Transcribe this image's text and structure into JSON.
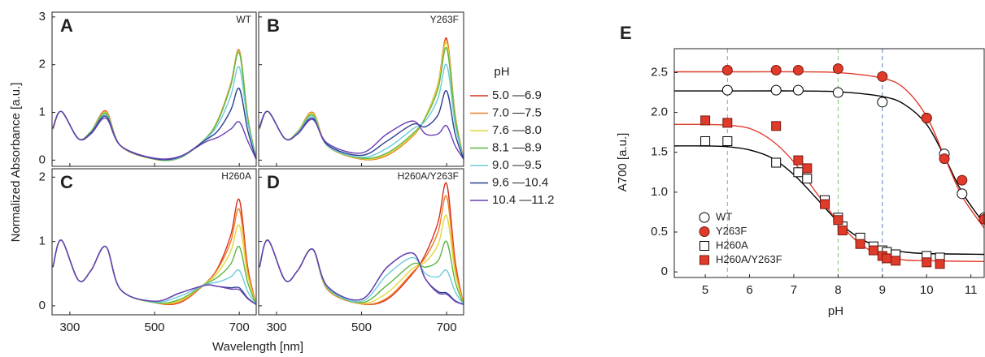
{
  "chart_data": [
    {
      "type": "line",
      "label": "A",
      "title": "WT",
      "y_label": "Normalized Absorbance [a.u.]",
      "legend_title": "pH",
      "x": [
        260,
        280,
        320,
        350,
        385,
        420,
        500,
        560,
        620,
        650,
        680,
        700,
        720,
        740
      ],
      "xlim": [
        258,
        740
      ],
      "xticks": [
        300,
        500,
        700
      ],
      "ylim": [
        -0.13,
        3.1
      ],
      "yticks": [
        0,
        1,
        2,
        3
      ],
      "series": [
        {
          "name": "5.0 —6.9",
          "color": "#d7301f",
          "values": [
            0.65,
            1.02,
            0.45,
            0.6,
            1.03,
            0.3,
            0.02,
            0.05,
            0.45,
            0.85,
            1.6,
            2.3,
            0.9,
            0.02
          ]
        },
        {
          "name": "7.0 —7.5",
          "color": "#f07f24",
          "values": [
            0.65,
            1.02,
            0.45,
            0.6,
            1.02,
            0.3,
            0.02,
            0.05,
            0.45,
            0.85,
            1.6,
            2.29,
            0.9,
            0.02
          ]
        },
        {
          "name": "7.6 —8.0",
          "color": "#e0d93a",
          "values": [
            0.66,
            1.02,
            0.45,
            0.6,
            1.0,
            0.3,
            0.02,
            0.05,
            0.45,
            0.84,
            1.58,
            2.27,
            0.89,
            0.02
          ]
        },
        {
          "name": "8.1 —8.9",
          "color": "#5cb544",
          "values": [
            0.66,
            1.02,
            0.45,
            0.6,
            0.98,
            0.3,
            0.02,
            0.05,
            0.45,
            0.83,
            1.56,
            2.25,
            0.88,
            0.02
          ]
        },
        {
          "name": "9.0 —9.5",
          "color": "#6dcbd9",
          "values": [
            0.67,
            1.02,
            0.45,
            0.58,
            0.95,
            0.3,
            0.03,
            0.06,
            0.44,
            0.75,
            1.35,
            1.95,
            0.78,
            0.02
          ]
        },
        {
          "name": "9.6 —10.4",
          "color": "#2b3f8f",
          "values": [
            0.67,
            1.02,
            0.45,
            0.57,
            0.92,
            0.3,
            0.03,
            0.07,
            0.42,
            0.62,
            1.05,
            1.5,
            0.62,
            0.02
          ]
        },
        {
          "name": "10.4 —11.2",
          "color": "#6a3fb4",
          "values": [
            0.68,
            1.02,
            0.45,
            0.55,
            0.88,
            0.3,
            0.04,
            0.08,
            0.38,
            0.48,
            0.65,
            0.8,
            0.4,
            0.02
          ]
        }
      ]
    },
    {
      "type": "line",
      "label": "B",
      "title": "Y263F",
      "x": [
        260,
        280,
        320,
        350,
        385,
        420,
        500,
        560,
        620,
        650,
        680,
        700,
        720,
        740
      ],
      "xlim": [
        258,
        740
      ],
      "xticks": [
        300,
        500,
        700
      ],
      "ylim": [
        -0.13,
        3.1
      ],
      "yticks": [
        0,
        1,
        2,
        3
      ],
      "series": [
        {
          "color": "#d7301f",
          "values": [
            0.65,
            1.02,
            0.45,
            0.6,
            1.0,
            0.3,
            0.02,
            0.1,
            0.5,
            0.9,
            1.6,
            2.55,
            0.95,
            0.02
          ]
        },
        {
          "color": "#f07f24",
          "values": [
            0.65,
            1.02,
            0.45,
            0.6,
            1.0,
            0.3,
            0.02,
            0.1,
            0.5,
            0.9,
            1.6,
            2.52,
            0.95,
            0.02
          ]
        },
        {
          "color": "#e0d93a",
          "values": [
            0.65,
            1.02,
            0.45,
            0.6,
            0.98,
            0.3,
            0.03,
            0.12,
            0.52,
            0.9,
            1.58,
            2.45,
            0.92,
            0.02
          ]
        },
        {
          "color": "#5cb544",
          "values": [
            0.66,
            1.02,
            0.45,
            0.59,
            0.95,
            0.3,
            0.04,
            0.15,
            0.55,
            0.88,
            1.5,
            2.35,
            0.88,
            0.02
          ]
        },
        {
          "color": "#6dcbd9",
          "values": [
            0.67,
            1.02,
            0.45,
            0.58,
            0.92,
            0.3,
            0.06,
            0.25,
            0.65,
            0.82,
            1.3,
            2.0,
            0.75,
            0.02
          ]
        },
        {
          "color": "#2b3f8f",
          "values": [
            0.68,
            1.02,
            0.45,
            0.56,
            0.88,
            0.32,
            0.1,
            0.4,
            0.75,
            0.7,
            0.95,
            1.45,
            0.55,
            0.02
          ]
        },
        {
          "color": "#6a3fb4",
          "values": [
            0.7,
            1.02,
            0.45,
            0.55,
            0.85,
            0.35,
            0.15,
            0.55,
            0.82,
            0.55,
            0.55,
            0.72,
            0.3,
            0.02
          ]
        }
      ]
    },
    {
      "type": "line",
      "label": "C",
      "title": "H260A",
      "x_label": "Wavelength [nm]",
      "x": [
        260,
        280,
        320,
        350,
        385,
        420,
        500,
        560,
        620,
        650,
        680,
        700,
        720,
        740
      ],
      "xlim": [
        258,
        740
      ],
      "xticks": [
        300,
        500,
        700
      ],
      "ylim": [
        -0.14,
        2.13
      ],
      "yticks": [
        0,
        1,
        2
      ],
      "series": [
        {
          "color": "#d7301f",
          "values": [
            0.6,
            1.02,
            0.4,
            0.55,
            0.92,
            0.25,
            0.05,
            0.05,
            0.35,
            0.6,
            1.1,
            1.65,
            0.6,
            0.02
          ]
        },
        {
          "color": "#f07f24",
          "values": [
            0.6,
            1.02,
            0.4,
            0.55,
            0.92,
            0.25,
            0.05,
            0.06,
            0.35,
            0.58,
            1.0,
            1.5,
            0.55,
            0.02
          ]
        },
        {
          "color": "#e0d93a",
          "values": [
            0.6,
            1.02,
            0.4,
            0.55,
            0.92,
            0.25,
            0.05,
            0.08,
            0.35,
            0.52,
            0.85,
            1.25,
            0.47,
            0.02
          ]
        },
        {
          "color": "#5cb544",
          "values": [
            0.6,
            1.02,
            0.4,
            0.55,
            0.92,
            0.25,
            0.05,
            0.1,
            0.34,
            0.45,
            0.65,
            0.92,
            0.36,
            0.02
          ]
        },
        {
          "color": "#6dcbd9",
          "values": [
            0.6,
            1.02,
            0.4,
            0.55,
            0.92,
            0.25,
            0.06,
            0.15,
            0.33,
            0.37,
            0.45,
            0.55,
            0.22,
            0.02
          ]
        },
        {
          "color": "#2b3f8f",
          "values": [
            0.6,
            1.02,
            0.4,
            0.55,
            0.92,
            0.25,
            0.07,
            0.2,
            0.32,
            0.3,
            0.28,
            0.28,
            0.12,
            0.02
          ]
        },
        {
          "color": "#6a3fb4",
          "values": [
            0.6,
            1.02,
            0.4,
            0.55,
            0.92,
            0.25,
            0.07,
            0.2,
            0.32,
            0.3,
            0.26,
            0.25,
            0.11,
            0.02
          ]
        }
      ]
    },
    {
      "type": "line",
      "label": "D",
      "title": "H260A/Y263F",
      "x": [
        260,
        280,
        320,
        350,
        385,
        420,
        500,
        560,
        620,
        650,
        680,
        700,
        720,
        740
      ],
      "xlim": [
        258,
        740
      ],
      "xticks": [
        300,
        500,
        700
      ],
      "ylim": [
        -0.14,
        2.13
      ],
      "yticks": [
        0,
        1,
        2
      ],
      "series": [
        {
          "color": "#d7301f",
          "values": [
            0.6,
            1.02,
            0.4,
            0.55,
            0.88,
            0.25,
            0.03,
            0.1,
            0.5,
            0.8,
            1.3,
            1.9,
            0.7,
            0.02
          ]
        },
        {
          "color": "#f07f24",
          "values": [
            0.6,
            1.02,
            0.4,
            0.55,
            0.88,
            0.25,
            0.03,
            0.12,
            0.52,
            0.75,
            1.15,
            1.7,
            0.62,
            0.02
          ]
        },
        {
          "color": "#e0d93a",
          "values": [
            0.6,
            1.02,
            0.4,
            0.55,
            0.88,
            0.26,
            0.04,
            0.2,
            0.58,
            0.68,
            0.95,
            1.4,
            0.52,
            0.02
          ]
        },
        {
          "color": "#5cb544",
          "values": [
            0.6,
            1.02,
            0.4,
            0.55,
            0.88,
            0.27,
            0.05,
            0.32,
            0.65,
            0.6,
            0.7,
            1.0,
            0.38,
            0.02
          ]
        },
        {
          "color": "#6dcbd9",
          "values": [
            0.6,
            1.02,
            0.4,
            0.55,
            0.88,
            0.28,
            0.07,
            0.48,
            0.75,
            0.5,
            0.45,
            0.55,
            0.22,
            0.02
          ]
        },
        {
          "color": "#2b3f8f",
          "values": [
            0.6,
            1.02,
            0.4,
            0.55,
            0.88,
            0.3,
            0.1,
            0.6,
            0.82,
            0.42,
            0.22,
            0.2,
            0.08,
            0.02
          ]
        },
        {
          "color": "#6a3fb4",
          "values": [
            0.6,
            1.02,
            0.4,
            0.55,
            0.88,
            0.3,
            0.1,
            0.6,
            0.82,
            0.42,
            0.2,
            0.18,
            0.07,
            0.02
          ]
        }
      ]
    },
    {
      "type": "scatter",
      "label": "E",
      "x_label": "pH",
      "y_label": "A700 [a.u.]",
      "xlim": [
        4.3,
        11.3
      ],
      "xticks": [
        5,
        6,
        7,
        8,
        9,
        10,
        11
      ],
      "ylim": [
        -0.07,
        2.8
      ],
      "yticks": [
        0,
        0.5,
        {
          "value": 1,
          "label": "1.0"
        },
        1.5,
        {
          "value": 2,
          "label": "2.0"
        },
        2.5
      ],
      "vlines": [
        {
          "x": 5.5,
          "color": "#e8877a"
        },
        {
          "x": 8,
          "color": "#7cc46a"
        },
        {
          "x": 9,
          "color": "#5a7ec9"
        }
      ],
      "series": [
        {
          "name": "WT",
          "marker": "circle",
          "filled": false,
          "color": "#000000",
          "x": [
            5.5,
            6.6,
            7.1,
            8.0,
            9.0,
            10.0,
            10.4,
            10.8,
            11.3
          ],
          "values": [
            2.28,
            2.28,
            2.28,
            2.25,
            2.13,
            1.93,
            1.48,
            0.98,
            0.68
          ]
        },
        {
          "name": "Y263F",
          "marker": "circle",
          "filled": true,
          "color": "#e03a2a",
          "x": [
            5.5,
            6.6,
            7.1,
            8.0,
            9.0,
            10.0,
            10.4,
            10.8,
            11.3
          ],
          "values": [
            2.53,
            2.53,
            2.53,
            2.55,
            2.45,
            1.93,
            1.42,
            1.15,
            0.66
          ]
        },
        {
          "name": "H260A",
          "marker": "square",
          "filled": false,
          "color": "#000000",
          "x": [
            5.0,
            5.5,
            6.6,
            7.1,
            7.3,
            7.7,
            8.0,
            8.1,
            8.5,
            8.8,
            9.0,
            9.1,
            9.3,
            10.0,
            10.3
          ],
          "values": [
            1.64,
            1.64,
            1.37,
            1.25,
            1.17,
            0.9,
            0.68,
            0.57,
            0.43,
            0.32,
            0.27,
            0.25,
            0.22,
            0.2,
            0.18
          ]
        },
        {
          "name": "H260A/Y263F",
          "marker": "square",
          "filled": true,
          "color": "#e03a2a",
          "x": [
            5.0,
            5.5,
            6.6,
            7.1,
            7.3,
            7.7,
            8.0,
            8.1,
            8.5,
            8.8,
            9.0,
            9.1,
            9.3,
            10.0,
            10.3
          ],
          "values": [
            1.9,
            1.87,
            1.83,
            1.4,
            1.3,
            0.85,
            0.65,
            0.52,
            0.35,
            0.27,
            0.2,
            0.17,
            0.14,
            0.12,
            0.1
          ]
        }
      ],
      "fits": [
        {
          "color": "#000000",
          "x": [
            4.3,
            6,
            7,
            8,
            9,
            9.5,
            10,
            10.4,
            10.8,
            11.3
          ],
          "values": [
            2.27,
            2.27,
            2.27,
            2.26,
            2.2,
            2.1,
            1.85,
            1.45,
            1.0,
            0.6
          ]
        },
        {
          "color": "#e03a2a",
          "x": [
            4.3,
            6,
            7,
            8,
            9,
            9.5,
            10,
            10.4,
            10.8,
            11.3
          ],
          "values": [
            2.51,
            2.51,
            2.51,
            2.5,
            2.43,
            2.3,
            1.95,
            1.45,
            0.95,
            0.55
          ]
        },
        {
          "color": "#000000",
          "x": [
            4.3,
            5,
            5.5,
            6,
            6.5,
            7,
            7.5,
            8,
            8.5,
            9,
            9.5,
            10,
            11.3
          ],
          "values": [
            1.58,
            1.58,
            1.57,
            1.53,
            1.43,
            1.22,
            0.93,
            0.63,
            0.42,
            0.3,
            0.25,
            0.23,
            0.22
          ]
        },
        {
          "color": "#e03a2a",
          "x": [
            4.3,
            5,
            5.5,
            6,
            6.5,
            7,
            7.5,
            8,
            8.5,
            9,
            9.5,
            10,
            11.3
          ],
          "values": [
            1.85,
            1.85,
            1.84,
            1.8,
            1.65,
            1.38,
            1.0,
            0.63,
            0.35,
            0.2,
            0.15,
            0.14,
            0.13
          ]
        }
      ]
    }
  ]
}
